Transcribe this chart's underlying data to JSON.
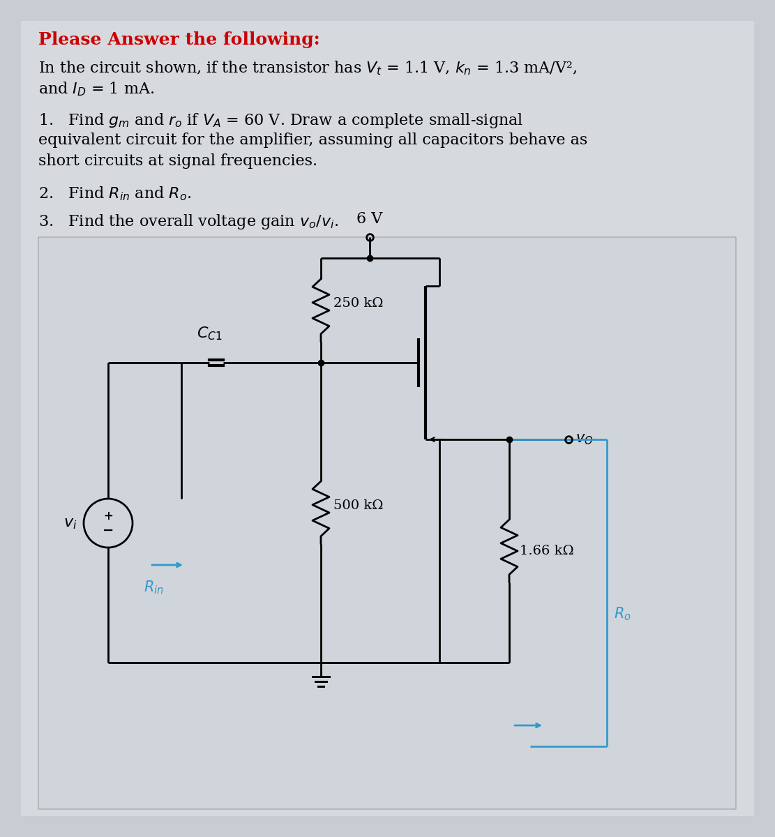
{
  "bg_color": "#c8cdd4",
  "panel_color": "#d4d8de",
  "circuit_bg": "#dde1e6",
  "title": "Please Answer the following:",
  "title_color": "#cc0000",
  "body_text": "In the circuit shown, if the transistor has V_t = 1.1 V, k_n = 1.3 mA/V²,\nand I_D = 1 mA.",
  "item1": "1.   Find g_m and r_o if V_A = 60 V. Draw a complete small-signal\nequivalent circuit for the amplifier, assuming all capacitors behave as\nshort circuits at signal frequencies.",
  "item2": "2.   Find R_in and R_o.",
  "item3": "3.   Find the overall voltage gain v_o/v_i.",
  "supply_voltage": "6 V",
  "R1_label": "250 kΩ",
  "R2_label": "500 kΩ",
  "RD_label": "1.66 kΩ",
  "cap_label": "C_C1",
  "Rin_label": "R_in",
  "Ro_label": "R_o",
  "vo_label": "v_O",
  "vi_label": "v_i",
  "line_color": "#000000",
  "blue_color": "#3399cc",
  "text_color": "#000000"
}
